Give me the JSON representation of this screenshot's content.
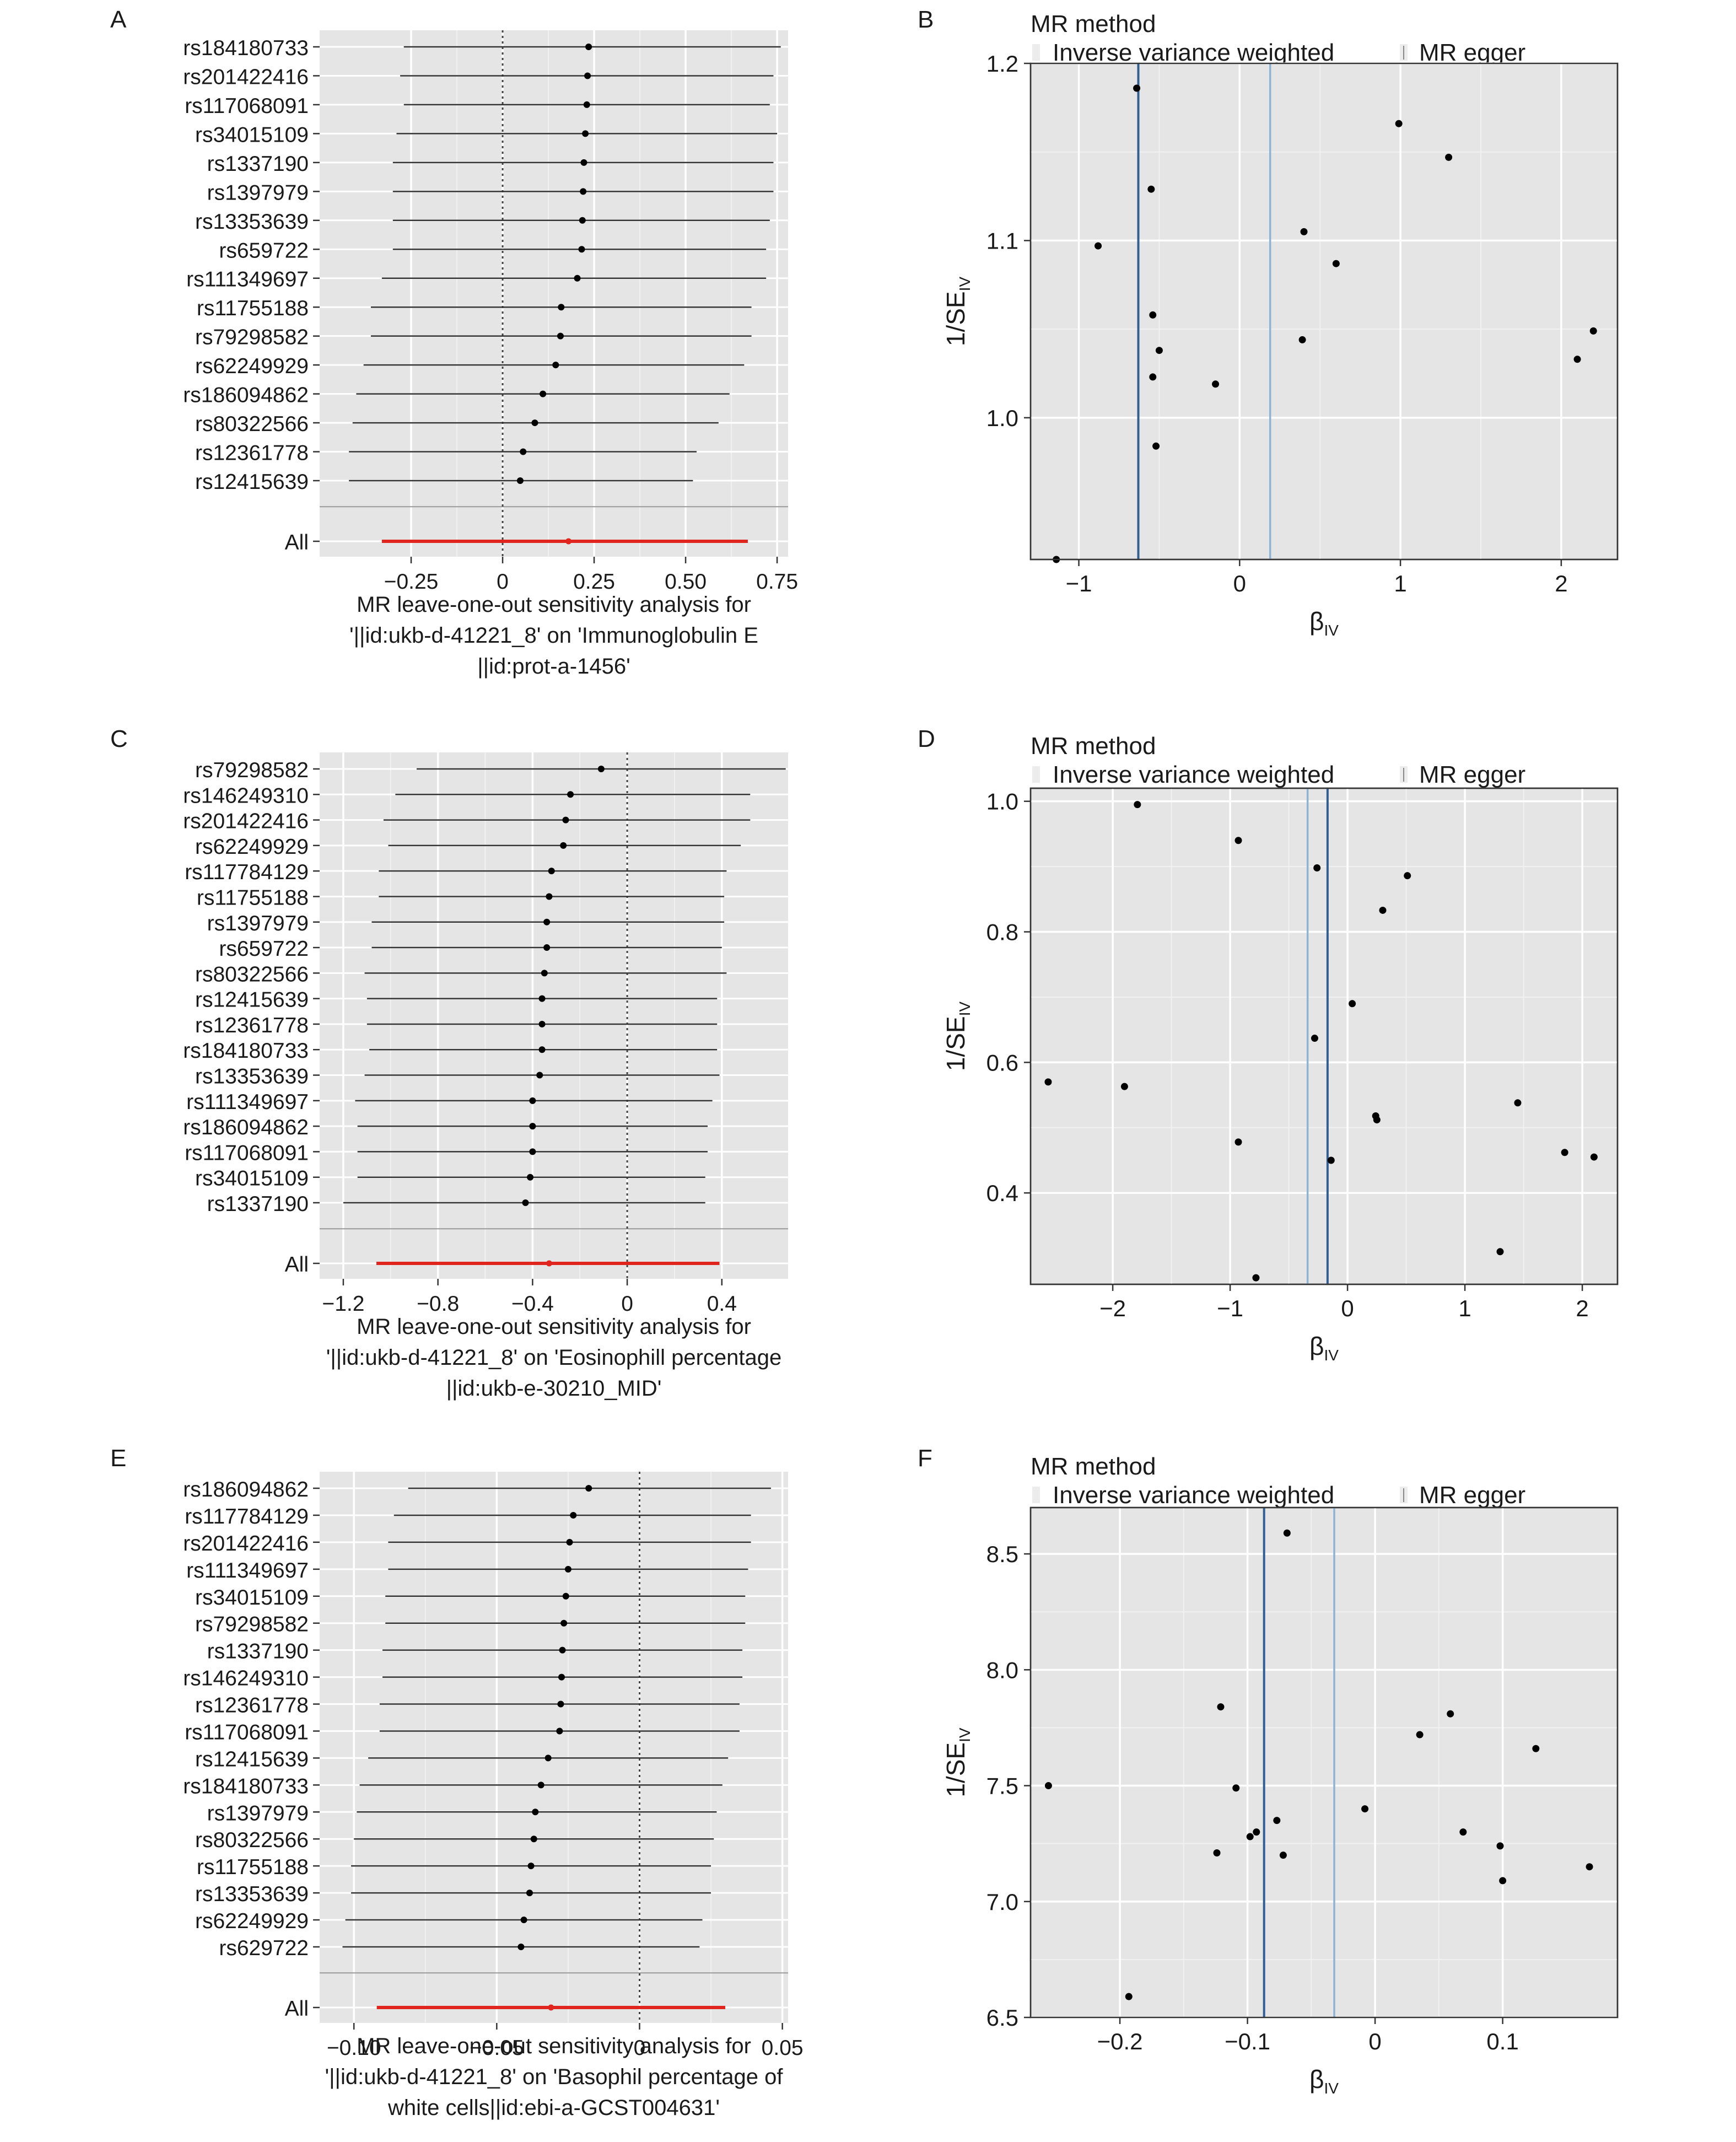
{
  "chart_data": [
    {
      "panel": "A",
      "type": "forest",
      "caption_lines": [
        "MR leave-one-out sensitivity analysis for",
        "'||id:ukb-d-41221_8' on 'Immunoglobulin E",
        "||id:prot-a-1456'"
      ],
      "xlim": [
        -0.5,
        0.78
      ],
      "xticks": [
        -0.25,
        0,
        0.25,
        0.5,
        0.75
      ],
      "xtick_labels": [
        "−0.25",
        "0",
        "0.25",
        "0.50",
        "0.75"
      ],
      "zero_line": 0,
      "rows": [
        {
          "label": "rs184180733",
          "est": 0.235,
          "lo": -0.27,
          "hi": 0.76
        },
        {
          "label": "rs201422416",
          "est": 0.232,
          "lo": -0.28,
          "hi": 0.74
        },
        {
          "label": "rs117068091",
          "est": 0.23,
          "lo": -0.27,
          "hi": 0.73
        },
        {
          "label": "rs34015109",
          "est": 0.226,
          "lo": -0.29,
          "hi": 0.75
        },
        {
          "label": "rs1337190",
          "est": 0.222,
          "lo": -0.3,
          "hi": 0.74
        },
        {
          "label": "rs1397979",
          "est": 0.22,
          "lo": -0.3,
          "hi": 0.74
        },
        {
          "label": "rs13353639",
          "est": 0.218,
          "lo": -0.3,
          "hi": 0.73
        },
        {
          "label": "rs659722",
          "est": 0.216,
          "lo": -0.3,
          "hi": 0.72
        },
        {
          "label": "rs111349697",
          "est": 0.204,
          "lo": -0.33,
          "hi": 0.72
        },
        {
          "label": "rs11755188",
          "est": 0.16,
          "lo": -0.36,
          "hi": 0.68
        },
        {
          "label": "rs79298582",
          "est": 0.158,
          "lo": -0.36,
          "hi": 0.68
        },
        {
          "label": "rs62249929",
          "est": 0.145,
          "lo": -0.38,
          "hi": 0.66
        },
        {
          "label": "rs186094862",
          "est": 0.11,
          "lo": -0.4,
          "hi": 0.62
        },
        {
          "label": "rs80322566",
          "est": 0.088,
          "lo": -0.41,
          "hi": 0.59
        },
        {
          "label": "rs12361778",
          "est": 0.056,
          "lo": -0.42,
          "hi": 0.53
        },
        {
          "label": "rs12415639",
          "est": 0.048,
          "lo": -0.42,
          "hi": 0.52
        }
      ],
      "all": {
        "label": "All",
        "est": 0.18,
        "lo": -0.33,
        "hi": 0.67
      }
    },
    {
      "panel": "B",
      "type": "scatter",
      "legend_title": "MR method",
      "legend_items": [
        "Inverse variance weighted",
        "MR egger"
      ],
      "xlabel_main": "β",
      "xlabel_sub": "IV",
      "ylabel_main": "1/SE",
      "ylabel_sub": "IV",
      "xlim": [
        -1.3,
        2.35
      ],
      "ylim": [
        0.92,
        1.2
      ],
      "xticks": [
        -1,
        0,
        1,
        2
      ],
      "xtick_labels": [
        "−1",
        "0",
        "1",
        "2"
      ],
      "yticks": [
        1.0,
        1.1,
        1.2
      ],
      "ytick_labels": [
        "1.0",
        "1.1",
        "1.2"
      ],
      "ivw": -0.63,
      "egger": 0.19,
      "points": [
        {
          "x": -1.14,
          "y": 0.92
        },
        {
          "x": -0.88,
          "y": 1.097
        },
        {
          "x": -0.64,
          "y": 1.186
        },
        {
          "x": -0.55,
          "y": 1.129
        },
        {
          "x": -0.54,
          "y": 1.058
        },
        {
          "x": -0.54,
          "y": 1.023
        },
        {
          "x": -0.52,
          "y": 0.984
        },
        {
          "x": -0.5,
          "y": 1.038
        },
        {
          "x": -0.15,
          "y": 1.019
        },
        {
          "x": 0.39,
          "y": 1.044
        },
        {
          "x": 0.4,
          "y": 1.105
        },
        {
          "x": 0.6,
          "y": 1.087
        },
        {
          "x": 0.99,
          "y": 1.166
        },
        {
          "x": 1.3,
          "y": 1.147
        },
        {
          "x": 2.1,
          "y": 1.033
        },
        {
          "x": 2.2,
          "y": 1.049
        }
      ]
    },
    {
      "panel": "C",
      "type": "forest",
      "caption_lines": [
        "MR leave-one-out sensitivity analysis for",
        "'||id:ukb-d-41221_8' on 'Eosinophill percentage",
        "||id:ukb-e-30210_MID'"
      ],
      "xlim": [
        -1.3,
        0.68
      ],
      "xticks": [
        -1.2,
        -0.8,
        -0.4,
        0,
        0.4
      ],
      "xtick_labels": [
        "−1.2",
        "−0.8",
        "−0.4",
        "0",
        "0.4"
      ],
      "zero_line": 0,
      "rows": [
        {
          "label": "rs79298582",
          "est": -0.11,
          "lo": -0.89,
          "hi": 0.67
        },
        {
          "label": "rs146249310",
          "est": -0.24,
          "lo": -0.98,
          "hi": 0.52
        },
        {
          "label": "rs201422416",
          "est": -0.26,
          "lo": -1.03,
          "hi": 0.52
        },
        {
          "label": "rs62249929",
          "est": -0.27,
          "lo": -1.01,
          "hi": 0.48
        },
        {
          "label": "rs117784129",
          "est": -0.32,
          "lo": -1.05,
          "hi": 0.42
        },
        {
          "label": "rs11755188",
          "est": -0.33,
          "lo": -1.05,
          "hi": 0.41
        },
        {
          "label": "rs1397979",
          "est": -0.34,
          "lo": -1.08,
          "hi": 0.41
        },
        {
          "label": "rs659722",
          "est": -0.34,
          "lo": -1.08,
          "hi": 0.4
        },
        {
          "label": "rs80322566",
          "est": -0.35,
          "lo": -1.11,
          "hi": 0.42
        },
        {
          "label": "rs12415639",
          "est": -0.36,
          "lo": -1.1,
          "hi": 0.38
        },
        {
          "label": "rs12361778",
          "est": -0.36,
          "lo": -1.1,
          "hi": 0.38
        },
        {
          "label": "rs184180733",
          "est": -0.36,
          "lo": -1.09,
          "hi": 0.38
        },
        {
          "label": "rs13353639",
          "est": -0.37,
          "lo": -1.11,
          "hi": 0.39
        },
        {
          "label": "rs111349697",
          "est": -0.4,
          "lo": -1.15,
          "hi": 0.36
        },
        {
          "label": "rs186094862",
          "est": -0.4,
          "lo": -1.14,
          "hi": 0.34
        },
        {
          "label": "rs117068091",
          "est": -0.4,
          "lo": -1.14,
          "hi": 0.34
        },
        {
          "label": "rs34015109",
          "est": -0.41,
          "lo": -1.14,
          "hi": 0.33
        },
        {
          "label": "rs1337190",
          "est": -0.43,
          "lo": -1.2,
          "hi": 0.33
        }
      ],
      "all": {
        "label": "All",
        "est": -0.33,
        "lo": -1.06,
        "hi": 0.39
      }
    },
    {
      "panel": "D",
      "type": "scatter",
      "legend_title": "MR method",
      "legend_items": [
        "Inverse variance weighted",
        "MR egger"
      ],
      "xlabel_main": "β",
      "xlabel_sub": "IV",
      "ylabel_main": "1/SE",
      "ylabel_sub": "IV",
      "xlim": [
        -2.7,
        2.3
      ],
      "ylim": [
        0.26,
        1.02
      ],
      "xticks": [
        -2,
        -1,
        0,
        1,
        2
      ],
      "xtick_labels": [
        "−2",
        "−1",
        "0",
        "1",
        "2"
      ],
      "yticks": [
        0.4,
        0.6,
        0.8,
        1.0
      ],
      "ytick_labels": [
        "0.4",
        "0.6",
        "0.8",
        "1.0"
      ],
      "ivw": -0.17,
      "egger": -0.34,
      "points": [
        {
          "x": -2.55,
          "y": 0.57
        },
        {
          "x": -1.9,
          "y": 0.563
        },
        {
          "x": -1.79,
          "y": 0.995
        },
        {
          "x": -0.93,
          "y": 0.94
        },
        {
          "x": -0.93,
          "y": 0.478
        },
        {
          "x": -0.78,
          "y": 0.27
        },
        {
          "x": -0.28,
          "y": 0.637
        },
        {
          "x": -0.26,
          "y": 0.898
        },
        {
          "x": -0.14,
          "y": 0.45
        },
        {
          "x": 0.04,
          "y": 0.69
        },
        {
          "x": 0.24,
          "y": 0.518
        },
        {
          "x": 0.25,
          "y": 0.512
        },
        {
          "x": 0.3,
          "y": 0.833
        },
        {
          "x": 0.51,
          "y": 0.886
        },
        {
          "x": 1.3,
          "y": 0.31
        },
        {
          "x": 1.45,
          "y": 0.538
        },
        {
          "x": 1.85,
          "y": 0.462
        },
        {
          "x": 2.1,
          "y": 0.455
        }
      ]
    },
    {
      "panel": "E",
      "type": "forest",
      "caption_lines": [
        "MR leave-one-out sensitivity analysis for",
        "'||id:ukb-d-41221_8' on 'Basophil percentage of",
        "white cells||id:ebi-a-GCST004631'"
      ],
      "xlim": [
        -0.112,
        0.052
      ],
      "xticks": [
        -0.1,
        -0.05,
        0,
        0.05
      ],
      "xtick_labels": [
        "−0.10",
        "−0.05",
        "0",
        "0.05"
      ],
      "zero_line": 0,
      "rows": [
        {
          "label": "rs186094862",
          "est": -0.0178,
          "lo": -0.081,
          "hi": 0.046
        },
        {
          "label": "rs117784129",
          "est": -0.0232,
          "lo": -0.086,
          "hi": 0.039
        },
        {
          "label": "rs201422416",
          "est": -0.0245,
          "lo": -0.088,
          "hi": 0.039
        },
        {
          "label": "rs111349697",
          "est": -0.025,
          "lo": -0.088,
          "hi": 0.038
        },
        {
          "label": "rs34015109",
          "est": -0.0258,
          "lo": -0.089,
          "hi": 0.037
        },
        {
          "label": "rs79298582",
          "est": -0.0265,
          "lo": -0.089,
          "hi": 0.037
        },
        {
          "label": "rs1337190",
          "est": -0.027,
          "lo": -0.09,
          "hi": 0.036
        },
        {
          "label": "rs146249310",
          "est": -0.0273,
          "lo": -0.09,
          "hi": 0.036
        },
        {
          "label": "rs12361778",
          "est": -0.0276,
          "lo": -0.091,
          "hi": 0.035
        },
        {
          "label": "rs117068091",
          "est": -0.028,
          "lo": -0.091,
          "hi": 0.035
        },
        {
          "label": "rs12415639",
          "est": -0.032,
          "lo": -0.095,
          "hi": 0.031
        },
        {
          "label": "rs184180733",
          "est": -0.0345,
          "lo": -0.098,
          "hi": 0.029
        },
        {
          "label": "rs1397979",
          "est": -0.0365,
          "lo": -0.099,
          "hi": 0.027
        },
        {
          "label": "rs80322566",
          "est": -0.037,
          "lo": -0.1,
          "hi": 0.026
        },
        {
          "label": "rs11755188",
          "est": -0.038,
          "lo": -0.101,
          "hi": 0.025
        },
        {
          "label": "rs13353639",
          "est": -0.0385,
          "lo": -0.101,
          "hi": 0.025
        },
        {
          "label": "rs62249929",
          "est": -0.0405,
          "lo": -0.103,
          "hi": 0.022
        },
        {
          "label": "rs629722",
          "est": -0.0415,
          "lo": -0.104,
          "hi": 0.021
        }
      ],
      "all": {
        "label": "All",
        "est": -0.031,
        "lo": -0.092,
        "hi": 0.03
      }
    },
    {
      "panel": "F",
      "type": "scatter",
      "legend_title": "MR method",
      "legend_items": [
        "Inverse variance weighted",
        "MR egger"
      ],
      "xlabel_main": "β",
      "xlabel_sub": "IV",
      "ylabel_main": "1/SE",
      "ylabel_sub": "IV",
      "xlim": [
        -0.27,
        0.19
      ],
      "ylim": [
        6.5,
        8.7
      ],
      "xticks": [
        -0.2,
        -0.1,
        0,
        0.1
      ],
      "xtick_labels": [
        "−0.2",
        "−0.1",
        "0",
        "0.1"
      ],
      "yticks": [
        6.5,
        7.0,
        7.5,
        8.0,
        8.5
      ],
      "ytick_labels": [
        "6.5",
        "7.0",
        "7.5",
        "8.0",
        "8.5"
      ],
      "ivw": -0.087,
      "egger": -0.032,
      "points": [
        {
          "x": -0.256,
          "y": 7.5
        },
        {
          "x": -0.193,
          "y": 6.59
        },
        {
          "x": -0.124,
          "y": 7.21
        },
        {
          "x": -0.121,
          "y": 7.84
        },
        {
          "x": -0.109,
          "y": 7.49
        },
        {
          "x": -0.098,
          "y": 7.28
        },
        {
          "x": -0.093,
          "y": 7.3
        },
        {
          "x": -0.077,
          "y": 7.35
        },
        {
          "x": -0.072,
          "y": 7.2
        },
        {
          "x": -0.069,
          "y": 8.59
        },
        {
          "x": -0.008,
          "y": 7.4
        },
        {
          "x": 0.035,
          "y": 7.72
        },
        {
          "x": 0.059,
          "y": 7.81
        },
        {
          "x": 0.069,
          "y": 7.3
        },
        {
          "x": 0.098,
          "y": 7.24
        },
        {
          "x": 0.1,
          "y": 7.09
        },
        {
          "x": 0.126,
          "y": 7.66
        },
        {
          "x": 0.168,
          "y": 7.15
        }
      ]
    }
  ]
}
